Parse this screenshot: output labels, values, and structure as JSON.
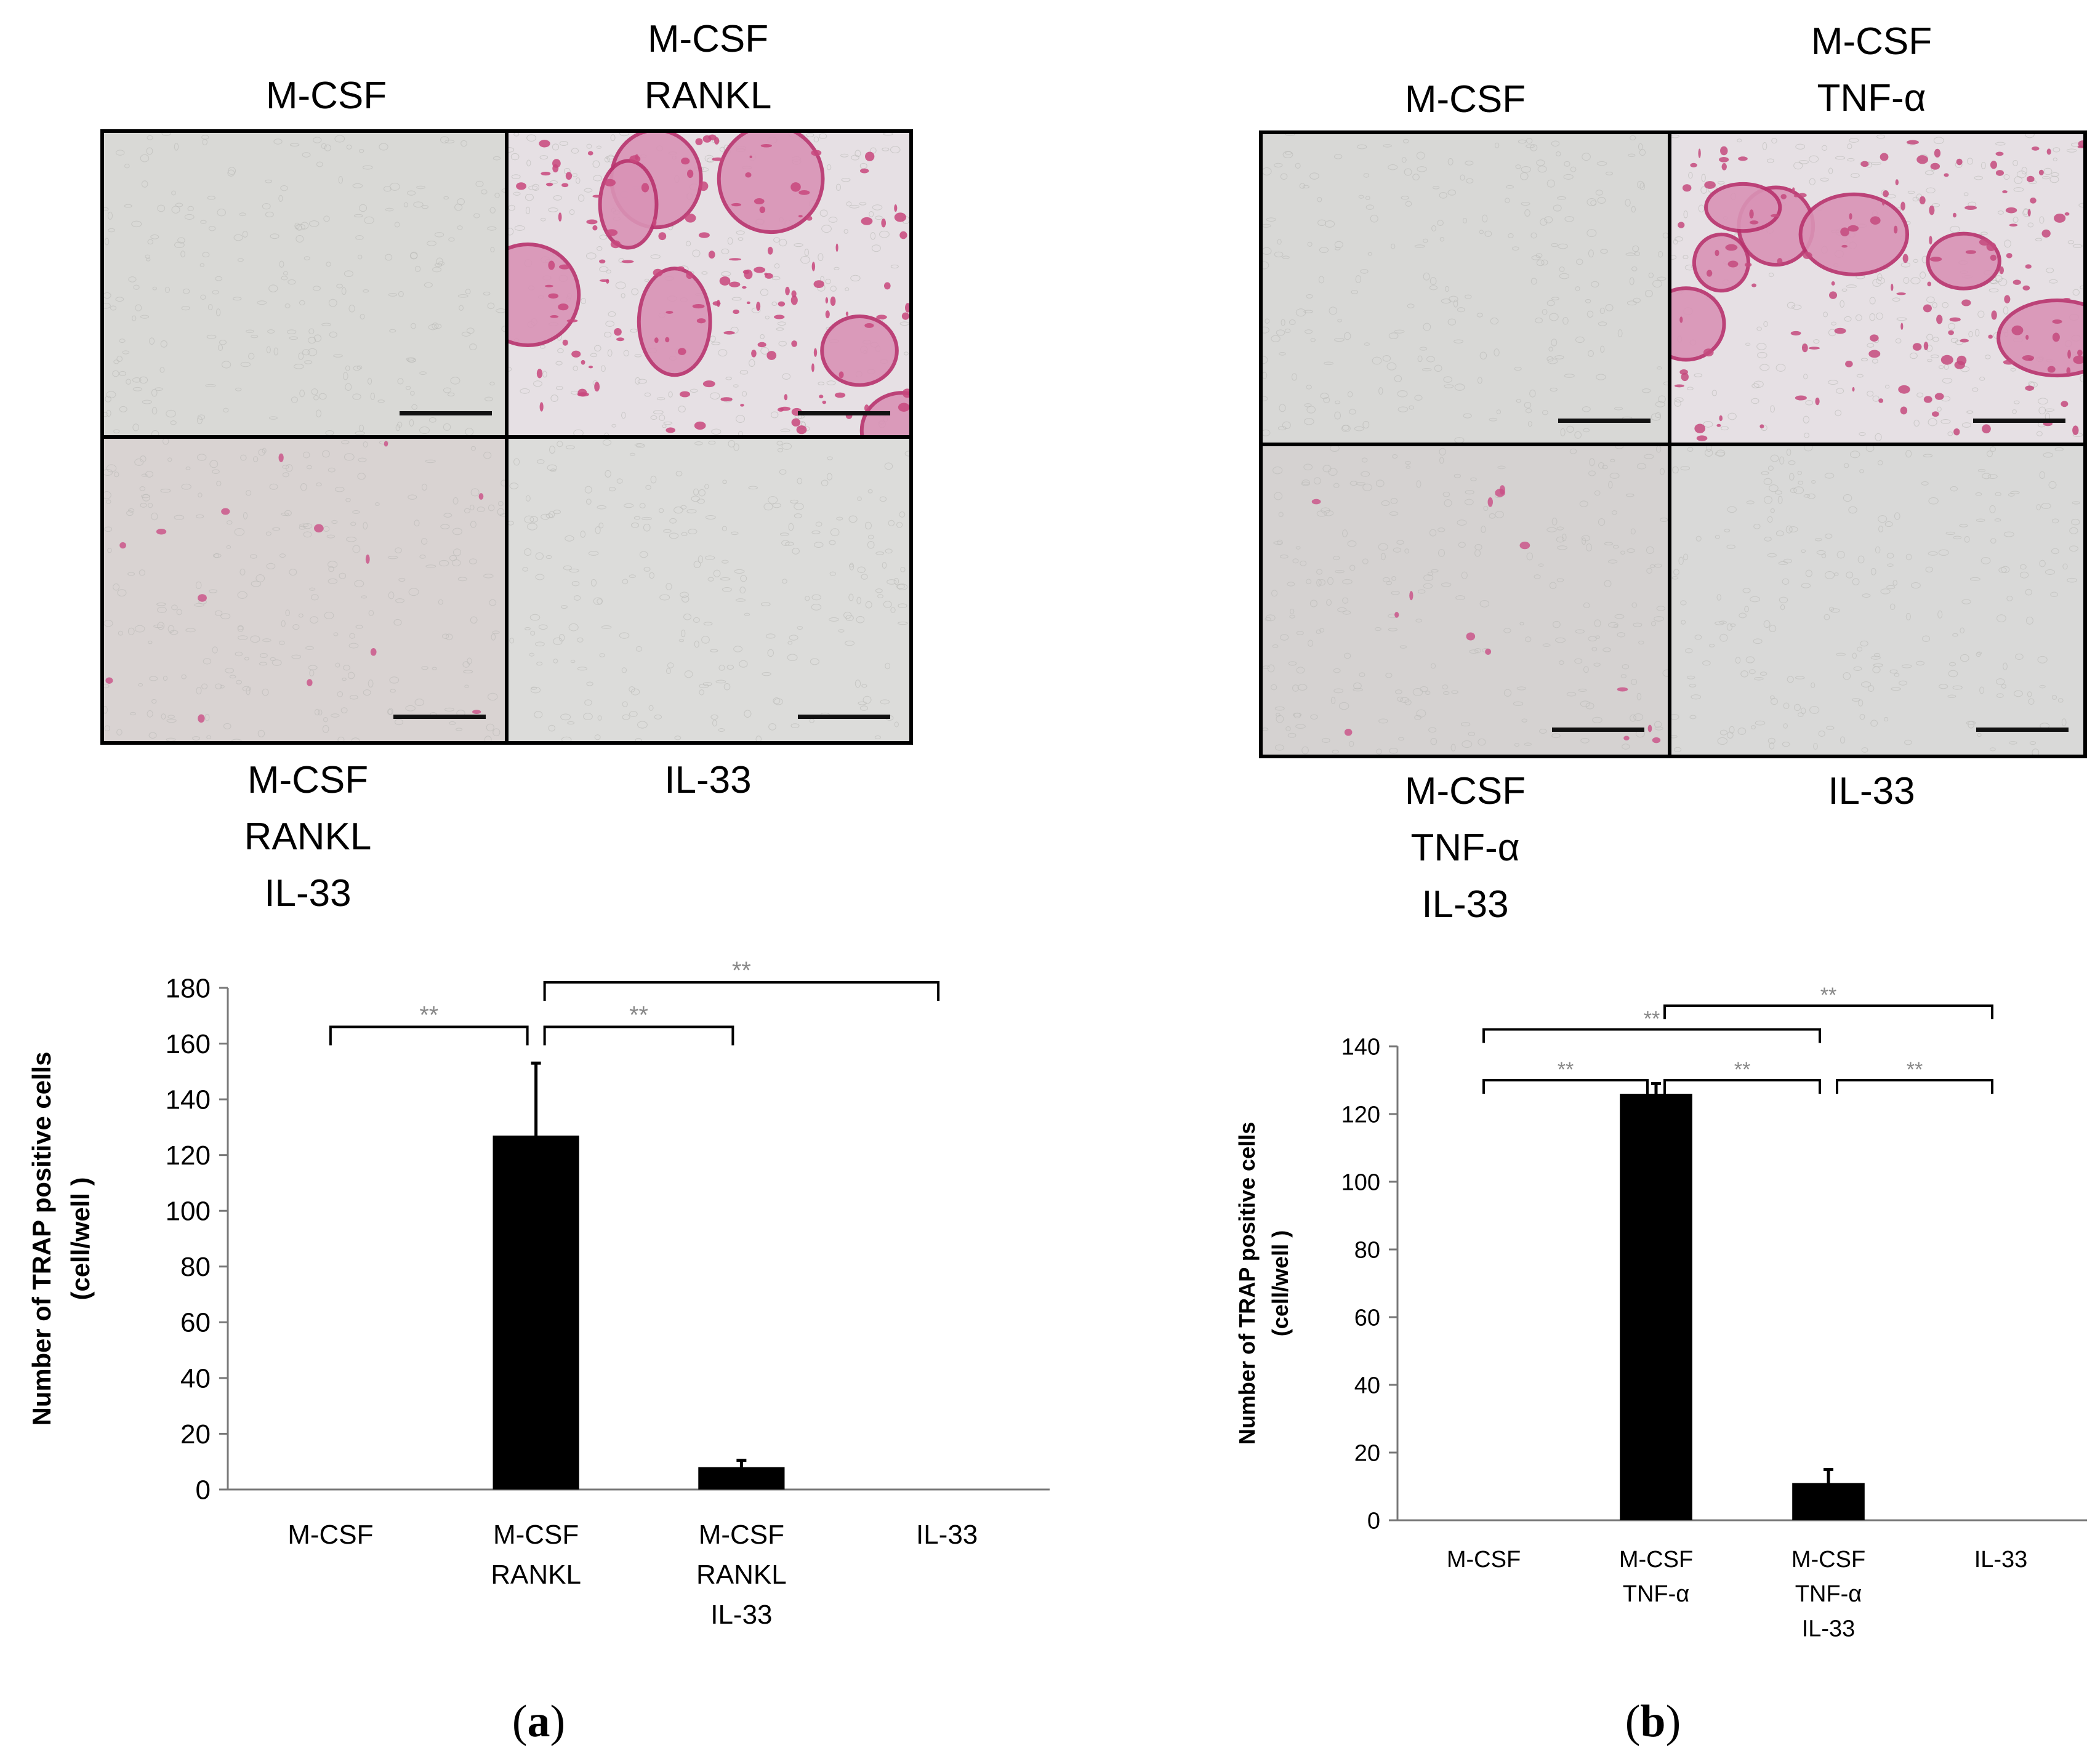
{
  "panels": [
    {
      "id": "a",
      "letter_open": "(",
      "letter": "a",
      "letter_close": ")",
      "image_labels": [
        "M-CSF",
        "M-CSF\nRANKL",
        "M-CSF\nRANKL\nIL-33",
        "IL-33"
      ],
      "micrographs": [
        {
          "group": "M-CSF",
          "stain": "none",
          "color": "#d9d9d6"
        },
        {
          "group": "M-CSF RANKL",
          "stain": "heavy",
          "color": "#c8477d"
        },
        {
          "group": "M-CSF RANKL IL-33",
          "stain": "sparse",
          "color": "#d9d3d2"
        },
        {
          "group": "IL-33",
          "stain": "none",
          "color": "#dcdcda"
        }
      ],
      "chart_data": {
        "type": "bar",
        "ylabel_line1": "Number of TRAP positive cells",
        "ylabel_line2": "(cell/well )",
        "ylim": [
          0,
          180
        ],
        "yticks": [
          "0",
          "20",
          "40",
          "60",
          "80",
          "100",
          "120",
          "140",
          "160",
          "180"
        ],
        "categories": [
          [
            "M-CSF"
          ],
          [
            "M-CSF",
            "RANKL"
          ],
          [
            "M-CSF",
            "RANKL",
            "IL-33"
          ],
          [
            "IL-33"
          ]
        ],
        "values": [
          0,
          127,
          8,
          0
        ],
        "errors": [
          0,
          26,
          2.5,
          0
        ],
        "bar_color": "#000000",
        "significance": [
          {
            "from": 0,
            "to": 1,
            "label": "**",
            "level": 0
          },
          {
            "from": 1,
            "to": 2,
            "label": "**",
            "level": 0
          },
          {
            "from": 1,
            "to": 3,
            "label": "**",
            "level": 1
          }
        ]
      }
    },
    {
      "id": "b",
      "letter_open": "(",
      "letter": "b",
      "letter_close": ")",
      "image_labels": [
        "M-CSF",
        "M-CSF\nTNF-α",
        "M-CSF\nTNF-α\nIL-33",
        "IL-33"
      ],
      "micrographs": [
        {
          "group": "M-CSF",
          "stain": "none",
          "color": "#d8d8d6"
        },
        {
          "group": "M-CSF TNF-α",
          "stain": "heavy",
          "color": "#c44a7e"
        },
        {
          "group": "M-CSF TNF-α IL-33",
          "stain": "sparse",
          "color": "#d5d2d1"
        },
        {
          "group": "IL-33",
          "stain": "none",
          "color": "#d9d9d8"
        }
      ],
      "chart_data": {
        "type": "bar",
        "ylabel_line1": "Number of TRAP positive cells",
        "ylabel_line2": "(cell/well )",
        "ylim": [
          0,
          140
        ],
        "yticks": [
          "0",
          "20",
          "40",
          "60",
          "80",
          "100",
          "120",
          "140"
        ],
        "categories": [
          [
            "M-CSF"
          ],
          [
            "M-CSF",
            "TNF-α"
          ],
          [
            "M-CSF",
            "TNF-α",
            "IL-33"
          ],
          [
            "IL-33"
          ]
        ],
        "values": [
          0,
          126,
          11,
          0
        ],
        "errors": [
          0,
          3,
          4,
          0
        ],
        "bar_color": "#000000",
        "significance": [
          {
            "from": 0,
            "to": 1,
            "label": "**",
            "level": 0
          },
          {
            "from": 1,
            "to": 2,
            "label": "**",
            "level": 0
          },
          {
            "from": 2,
            "to": 3,
            "label": "**",
            "level": 0
          },
          {
            "from": 0,
            "to": 2,
            "label": "**",
            "level": 1
          },
          {
            "from": 1,
            "to": 3,
            "label": "**",
            "level": 2
          }
        ]
      }
    }
  ]
}
